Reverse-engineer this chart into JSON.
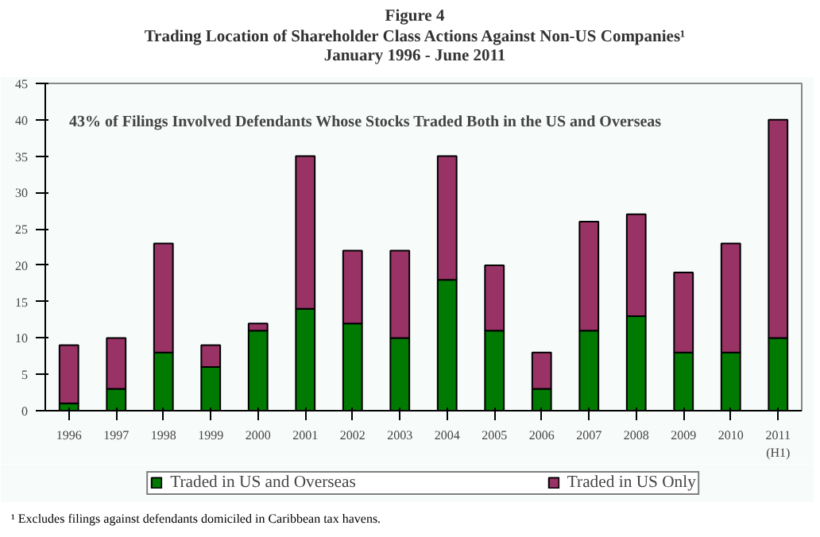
{
  "chart_data": {
    "type": "bar",
    "stacked": true,
    "title": "Figure 4\nTrading Location of Shareholder Class Actions Against Non-US Companies¹\nJanuary 1996 - June 2011",
    "categories": [
      "1996",
      "1997",
      "1998",
      "1999",
      "2000",
      "2001",
      "2002",
      "2003",
      "2004",
      "2005",
      "2006",
      "2007",
      "2008",
      "2009",
      "2010",
      "2011\n(H1)"
    ],
    "series": [
      {
        "name": "Traded in US and Overseas",
        "color": "#007a00",
        "values": [
          1,
          3,
          8,
          6,
          11,
          14,
          12,
          10,
          18,
          11,
          3,
          11,
          13,
          8,
          8,
          10
        ]
      },
      {
        "name": "Traded in US Only",
        "color": "#993366",
        "values": [
          8,
          7,
          15,
          3,
          1,
          21,
          10,
          12,
          17,
          9,
          5,
          15,
          14,
          11,
          15,
          30
        ]
      }
    ],
    "ylim": [
      0,
      45
    ],
    "yticks": [
      0,
      5,
      10,
      15,
      20,
      25,
      30,
      35,
      40,
      45
    ],
    "grid": false,
    "legend": "bottom",
    "annotations": [
      "43% of Filings Involved Defendants Whose Stocks Traded Both in the US and Overseas",
      "¹ Excludes filings against defendants domiciled in Caribbean tax havens."
    ]
  }
}
